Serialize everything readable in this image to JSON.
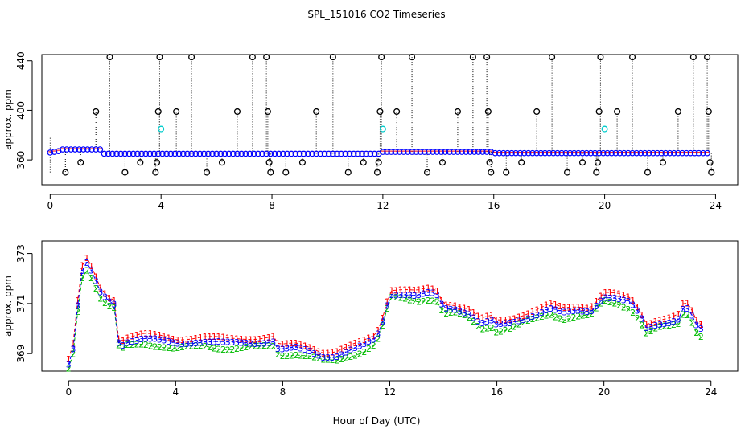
{
  "title": "SPL_151016  CO2 Timeseries",
  "xlabel": "Hour of Day (UTC)",
  "colors": {
    "black": "#000000",
    "cyan": "#00cccc",
    "blue": "#0000ff",
    "red": "#ff0000",
    "green": "#00bb00"
  },
  "chart_data": [
    {
      "type": "scatter",
      "name": "top-panel",
      "ylabel": "approx. ppm",
      "xlim": [
        -0.3,
        24.8
      ],
      "ylim": [
        340,
        445
      ],
      "x_ticks": [
        0,
        4,
        8,
        12,
        16,
        20,
        24
      ],
      "y_ticks": [
        360,
        400,
        440
      ],
      "baseline": {
        "start": 0,
        "end": 23.8,
        "step": 0.15,
        "level_early": 366,
        "level_mid": 365,
        "level_late": 366.5
      },
      "outliers": [
        {
          "x": 0.55,
          "y": 350
        },
        {
          "x": 1.1,
          "y": 358
        },
        {
          "x": 1.65,
          "y": 399
        },
        {
          "x": 2.15,
          "y": 443
        },
        {
          "x": 2.7,
          "y": 350
        },
        {
          "x": 3.25,
          "y": 358
        },
        {
          "x": 3.8,
          "y": 350
        },
        {
          "x": 3.85,
          "y": 358
        },
        {
          "x": 3.9,
          "y": 399
        },
        {
          "x": 3.95,
          "y": 443
        },
        {
          "x": 4.55,
          "y": 399
        },
        {
          "x": 5.1,
          "y": 443
        },
        {
          "x": 5.65,
          "y": 350
        },
        {
          "x": 6.2,
          "y": 358
        },
        {
          "x": 6.75,
          "y": 399
        },
        {
          "x": 7.3,
          "y": 443
        },
        {
          "x": 7.8,
          "y": 443
        },
        {
          "x": 7.85,
          "y": 399
        },
        {
          "x": 7.9,
          "y": 358
        },
        {
          "x": 7.95,
          "y": 350
        },
        {
          "x": 8.5,
          "y": 350
        },
        {
          "x": 9.1,
          "y": 358
        },
        {
          "x": 9.6,
          "y": 399
        },
        {
          "x": 10.2,
          "y": 443
        },
        {
          "x": 10.75,
          "y": 350
        },
        {
          "x": 11.3,
          "y": 358
        },
        {
          "x": 11.8,
          "y": 350
        },
        {
          "x": 11.85,
          "y": 358
        },
        {
          "x": 11.9,
          "y": 399
        },
        {
          "x": 11.95,
          "y": 443
        },
        {
          "x": 12.5,
          "y": 399
        },
        {
          "x": 13.05,
          "y": 443
        },
        {
          "x": 13.6,
          "y": 350
        },
        {
          "x": 14.15,
          "y": 358
        },
        {
          "x": 14.7,
          "y": 399
        },
        {
          "x": 15.25,
          "y": 443
        },
        {
          "x": 15.75,
          "y": 443
        },
        {
          "x": 15.8,
          "y": 399
        },
        {
          "x": 15.85,
          "y": 358
        },
        {
          "x": 15.9,
          "y": 350
        },
        {
          "x": 16.45,
          "y": 350
        },
        {
          "x": 17.0,
          "y": 358
        },
        {
          "x": 17.55,
          "y": 399
        },
        {
          "x": 18.1,
          "y": 443
        },
        {
          "x": 18.65,
          "y": 350
        },
        {
          "x": 19.2,
          "y": 358
        },
        {
          "x": 19.7,
          "y": 350
        },
        {
          "x": 19.75,
          "y": 358
        },
        {
          "x": 19.8,
          "y": 399
        },
        {
          "x": 19.85,
          "y": 443
        },
        {
          "x": 20.45,
          "y": 399
        },
        {
          "x": 21.0,
          "y": 443
        },
        {
          "x": 21.55,
          "y": 350
        },
        {
          "x": 22.1,
          "y": 358
        },
        {
          "x": 22.65,
          "y": 399
        },
        {
          "x": 23.2,
          "y": 443
        },
        {
          "x": 23.7,
          "y": 443
        },
        {
          "x": 23.75,
          "y": 399
        },
        {
          "x": 23.8,
          "y": 358
        },
        {
          "x": 23.85,
          "y": 350
        }
      ],
      "cyan_points": [
        {
          "x": 4.0,
          "y": 385
        },
        {
          "x": 12.0,
          "y": 385
        },
        {
          "x": 20.0,
          "y": 385
        }
      ]
    },
    {
      "type": "line",
      "name": "bottom-panel",
      "ylabel": "approx. ppm",
      "xlim": [
        -1.0,
        25.0
      ],
      "ylim": [
        368.3,
        373.5
      ],
      "x_ticks": [
        0,
        4,
        8,
        12,
        16,
        20,
        24
      ],
      "y_ticks": [
        369,
        371,
        373
      ],
      "series": [
        {
          "name": "1",
          "marker": "1",
          "color": "#ff0000",
          "offset": 0.18
        },
        {
          "name": "2",
          "marker": "2",
          "color": "#00bb00",
          "offset": -0.2
        },
        {
          "name": "3",
          "marker": "3",
          "color": "#0000ff",
          "offset": 0.0
        }
      ],
      "baseline_points": [
        [
          0.0,
          368.6
        ],
        [
          0.15,
          369.0
        ],
        [
          0.3,
          370.5
        ],
        [
          0.45,
          372.0
        ],
        [
          0.6,
          372.7
        ],
        [
          0.8,
          372.4
        ],
        [
          1.0,
          371.9
        ],
        [
          1.2,
          371.4
        ],
        [
          1.5,
          371.1
        ],
        [
          1.7,
          371.0
        ],
        [
          1.8,
          369.9
        ],
        [
          1.9,
          369.3
        ],
        [
          2.2,
          369.5
        ],
        [
          2.8,
          369.6
        ],
        [
          3.5,
          369.5
        ],
        [
          4.0,
          369.4
        ],
        [
          5.0,
          369.5
        ],
        [
          6.0,
          369.4
        ],
        [
          7.0,
          369.45
        ],
        [
          7.7,
          369.5
        ],
        [
          7.8,
          369.2
        ],
        [
          8.0,
          369.15
        ],
        [
          8.5,
          369.2
        ],
        [
          9.0,
          369.1
        ],
        [
          9.5,
          368.9
        ],
        [
          10.0,
          368.9
        ],
        [
          10.5,
          369.1
        ],
        [
          11.0,
          369.3
        ],
        [
          11.5,
          369.6
        ],
        [
          11.8,
          370.5
        ],
        [
          12.0,
          371.4
        ],
        [
          12.5,
          371.4
        ],
        [
          13.0,
          371.3
        ],
        [
          13.5,
          371.4
        ],
        [
          13.8,
          371.3
        ],
        [
          14.0,
          370.8
        ],
        [
          14.5,
          370.8
        ],
        [
          15.0,
          370.6
        ],
        [
          15.4,
          370.2
        ],
        [
          15.8,
          370.3
        ],
        [
          16.0,
          370.1
        ],
        [
          16.5,
          370.2
        ],
        [
          17.0,
          370.4
        ],
        [
          17.5,
          370.6
        ],
        [
          18.0,
          370.8
        ],
        [
          18.5,
          370.6
        ],
        [
          19.0,
          370.7
        ],
        [
          19.5,
          370.7
        ],
        [
          20.0,
          371.3
        ],
        [
          20.5,
          371.2
        ],
        [
          21.0,
          371.0
        ],
        [
          21.3,
          370.6
        ],
        [
          21.6,
          370.0
        ],
        [
          22.0,
          370.2
        ],
        [
          22.5,
          370.3
        ],
        [
          22.8,
          370.4
        ],
        [
          23.0,
          370.9
        ],
        [
          23.2,
          370.7
        ],
        [
          23.5,
          370.0
        ],
        [
          23.7,
          369.9
        ]
      ]
    }
  ]
}
